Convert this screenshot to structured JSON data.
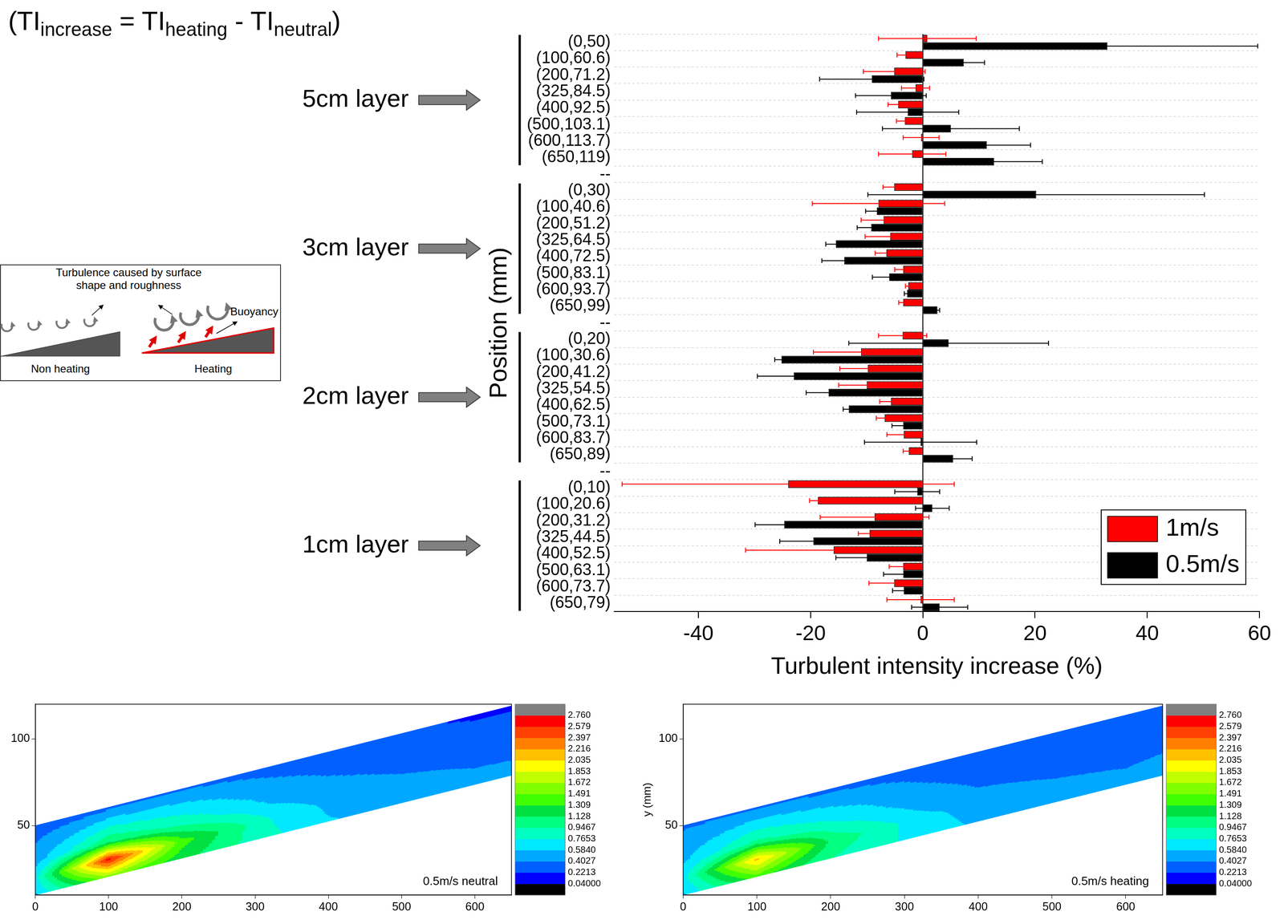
{
  "chart_data": [
    {
      "type": "bar",
      "orientation": "horizontal",
      "xlabel": "Turbulent intensity increase (%)",
      "ylabel": "Position (mm)",
      "categories": [
        "(0,50)",
        "(100,60.6)",
        "(200,71.2)",
        "(325,84.5)",
        "(400,92.5)",
        "(500,103.1)",
        "(600,113.7)",
        "(650,119)",
        "--",
        "(0,30)",
        "(100,40.6)",
        "(200,51.2)",
        "(325,64.5)",
        "(400,72.5)",
        "(500,83.1)",
        "(600,93.7)",
        "(650,99)",
        "--",
        "(0,20)",
        "(100,30.6)",
        "(200,41.2)",
        "(325,54.5)",
        "(400,62.5)",
        "(500,73.1)",
        "(600,83.7)",
        "(650,89)",
        "--",
        "(0,10)",
        "(100,20.6)",
        "(200,31.2)",
        "(325,44.5)",
        "(400,52.5)",
        "(500,63.1)",
        "(600,73.7)",
        "(650,79)"
      ],
      "groups": [
        "5cm layer",
        "3cm layer",
        "2cm layer",
        "1cm layer"
      ],
      "series": [
        {
          "name": "1m/s",
          "color": "#ff0000",
          "values": [
            0.8,
            -3.1,
            -5.1,
            -1.3,
            -4.4,
            -3.2,
            -0.3,
            -1.9,
            null,
            -5.1,
            -7.9,
            -7.0,
            -5.8,
            -6.5,
            -3.5,
            -2.6,
            -3.5,
            null,
            -3.6,
            -11.0,
            -9.8,
            -10.0,
            -5.7,
            -6.8,
            -3.4,
            -2.5,
            null,
            -24.0,
            -18.7,
            -8.6,
            -9.5,
            -15.9,
            -3.5,
            -5.1,
            -0.4
          ],
          "errors": [
            8.7,
            1.5,
            5.5,
            2.5,
            1.8,
            1.5,
            3.2,
            6.0,
            null,
            2.0,
            11.8,
            4.0,
            4.5,
            2.0,
            1.5,
            0.5,
            0.8,
            null,
            4.3,
            8.5,
            5.0,
            5.0,
            2.0,
            1.5,
            3.0,
            1.0,
            null,
            29.6,
            1.5,
            9.7,
            2.0,
            15.7,
            2.5,
            4.5,
            6.0
          ]
        },
        {
          "name": "0.5m/s",
          "color": "#000000",
          "values": [
            32.9,
            7.3,
            -9.1,
            -5.7,
            -2.7,
            5.0,
            11.4,
            12.7,
            null,
            20.2,
            -8.2,
            -9.2,
            -15.5,
            -14.0,
            -6.0,
            -2.8,
            2.6,
            null,
            4.6,
            -25.2,
            -23.0,
            -16.8,
            -13.2,
            -3.5,
            -0.4,
            5.4,
            null,
            -1.0,
            1.7,
            -24.7,
            -19.5,
            -10.0,
            -3.5,
            -3.4,
            3.0
          ],
          "errors": [
            26.8,
            3.7,
            9.3,
            6.3,
            9.1,
            12.2,
            7.8,
            8.6,
            null,
            30.0,
            2.0,
            2.5,
            1.8,
            4.0,
            3.0,
            0.5,
            0.4,
            null,
            17.8,
            1.2,
            6.5,
            4.0,
            1.0,
            2.0,
            10.0,
            3.4,
            null,
            4.0,
            3.0,
            5.2,
            6.0,
            5.5,
            3.5,
            2.0,
            5.0
          ]
        }
      ],
      "xlim": [
        -55,
        60
      ],
      "xticks": [
        -40,
        -20,
        0,
        20,
        40,
        60
      ],
      "legend": "lower right",
      "grid": true
    },
    {
      "type": "contour",
      "annotation": "0.5m/s neutral",
      "x": [
        0,
        100,
        200,
        325,
        400,
        500,
        600,
        650
      ],
      "y": [
        [
          10,
          20.6,
          31.2,
          44.5,
          52.5,
          63.1,
          73.7,
          79
        ],
        [
          20,
          30.6,
          41.2,
          54.5,
          62.5,
          73.1,
          83.7,
          89
        ],
        [
          30,
          40.6,
          51.2,
          64.5,
          72.5,
          83.1,
          93.7,
          99
        ],
        [
          50,
          60.6,
          71.2,
          84.5,
          92.5,
          103.1,
          113.7,
          119
        ]
      ],
      "values": [
        [
          0.55,
          1.6,
          1.2,
          0.8,
          0.6,
          0.5,
          0.45,
          0.42
        ],
        [
          0.7,
          2.65,
          1.4,
          0.75,
          0.55,
          0.45,
          0.4,
          0.4
        ],
        [
          0.5,
          1.1,
          0.9,
          0.55,
          0.45,
          0.38,
          0.35,
          0.35
        ],
        [
          0.3,
          0.35,
          0.38,
          0.33,
          0.3,
          0.25,
          0.2,
          0.2
        ]
      ],
      "xlim": [
        0,
        650
      ],
      "xticks": [
        0,
        100,
        200,
        300,
        400,
        500,
        600
      ],
      "ylim": [
        10,
        120
      ],
      "yticks": [
        50,
        100
      ],
      "colorbar": {
        "levels": [
          {
            "value": 0.04,
            "label": "0.04000"
          },
          0.2213,
          0.4027,
          {
            "value": 0.584,
            "label": "0.5840"
          },
          0.7653,
          0.9467,
          1.128,
          1.309,
          1.491,
          1.672,
          1.853,
          2.035,
          2.216,
          2.397,
          2.579,
          {
            "value": 2.76,
            "label": "2.760"
          }
        ],
        "colors": [
          "#000000",
          "#0000ff",
          "#0060ff",
          "#00a8ff",
          "#00e8ff",
          "#00ffc0",
          "#00ff80",
          "#00e040",
          "#40ff00",
          "#80ff00",
          "#c0ff00",
          "#ffff00",
          "#ffc000",
          "#ff8000",
          "#ff4000",
          "#ff0000",
          "#808080"
        ]
      }
    },
    {
      "type": "contour",
      "annotation": "0.5m/s heating",
      "ylabel": "y (mm)",
      "x": [
        0,
        100,
        200,
        325,
        400,
        500,
        600,
        650
      ],
      "y": [
        [
          10,
          20.6,
          31.2,
          44.5,
          52.5,
          63.1,
          73.7,
          79
        ],
        [
          20,
          30.6,
          41.2,
          54.5,
          62.5,
          73.1,
          83.7,
          89
        ],
        [
          30,
          40.6,
          51.2,
          64.5,
          72.5,
          83.1,
          93.7,
          99
        ],
        [
          50,
          60.6,
          71.2,
          84.5,
          92.5,
          103.1,
          113.7,
          119
        ]
      ],
      "values": [
        [
          0.55,
          1.4,
          0.95,
          0.7,
          0.55,
          0.48,
          0.43,
          0.42
        ],
        [
          0.7,
          2.1,
          1.1,
          0.65,
          0.5,
          0.43,
          0.4,
          0.42
        ],
        [
          0.55,
          1.0,
          0.8,
          0.48,
          0.4,
          0.36,
          0.34,
          0.36
        ],
        [
          0.38,
          0.38,
          0.36,
          0.33,
          0.3,
          0.27,
          0.23,
          0.22
        ]
      ],
      "xlim": [
        0,
        650
      ],
      "xticks": [
        0,
        100,
        200,
        300,
        400,
        500,
        600
      ],
      "ylim": [
        10,
        120
      ],
      "yticks": [
        50,
        100
      ],
      "colorbar": {
        "levels": [
          {
            "value": 0.04,
            "label": "0.04000"
          },
          0.2213,
          0.4027,
          {
            "value": 0.584,
            "label": "0.5840"
          },
          0.7653,
          0.9467,
          1.128,
          1.309,
          1.491,
          1.672,
          1.853,
          2.035,
          2.216,
          2.397,
          2.579,
          {
            "value": 2.76,
            "label": "2.760"
          }
        ],
        "colors": [
          "#000000",
          "#0000ff",
          "#0060ff",
          "#00a8ff",
          "#00e8ff",
          "#00ffc0",
          "#00ff80",
          "#00e040",
          "#40ff00",
          "#80ff00",
          "#c0ff00",
          "#ffff00",
          "#ffc000",
          "#ff8000",
          "#ff4000",
          "#ff0000",
          "#808080"
        ]
      }
    }
  ],
  "formula": [
    {
      "text": "(TI",
      "sub": "increase"
    },
    {
      "text": " = TI",
      "sub": "heating"
    },
    {
      "text": " - TI",
      "sub": "neutral"
    },
    {
      "text": ")"
    }
  ],
  "diagram": {
    "title": "Turbulence caused by surface shape and roughness",
    "buoyancy": "Buoyancy",
    "left_label": "Non heating",
    "right_label": "Heating"
  }
}
